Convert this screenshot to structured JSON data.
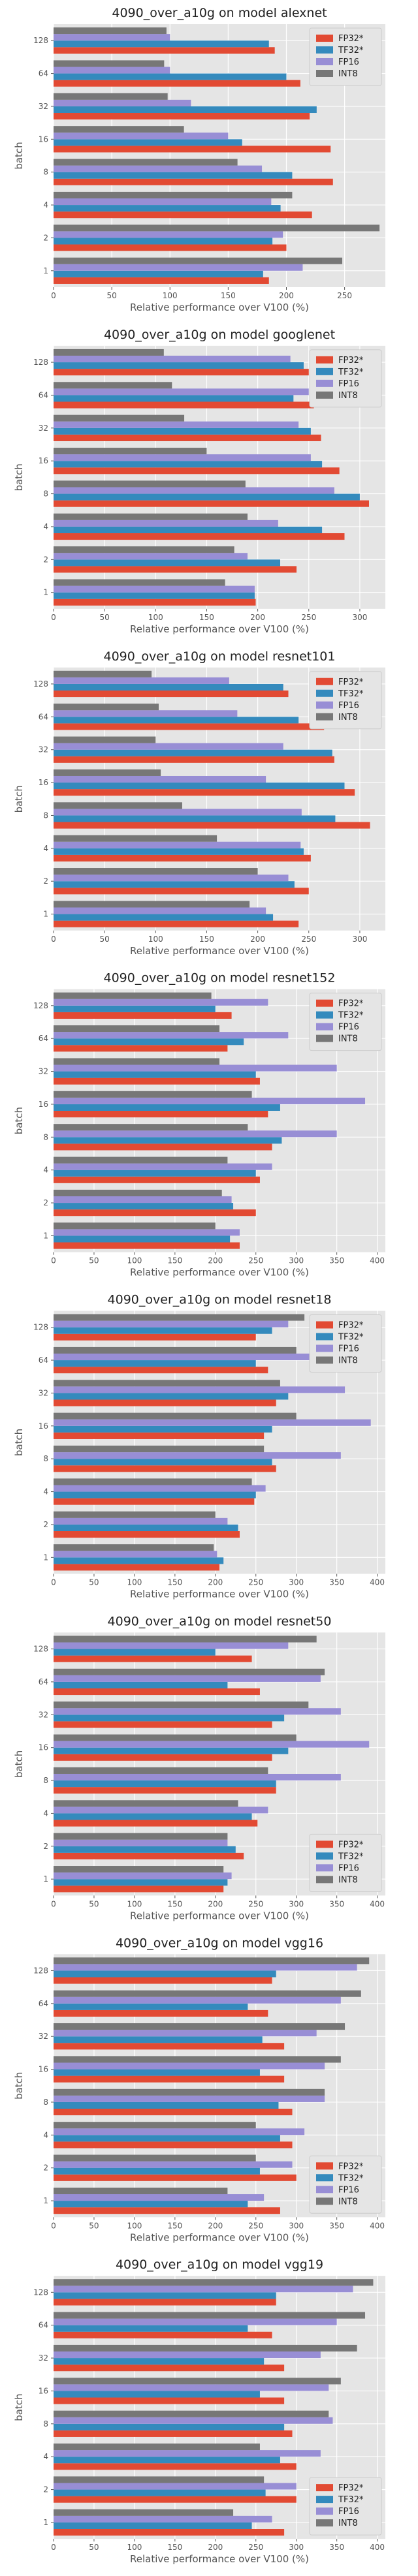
{
  "chart_data": [
    {
      "type": "bar",
      "orientation": "horizontal",
      "title": "4090_over_a10g on model alexnet",
      "xlabel": "Relative performance over V100 (%)",
      "ylabel": "batch",
      "categories": [
        "1",
        "2",
        "4",
        "8",
        "16",
        "32",
        "64",
        "128"
      ],
      "xlim": [
        0,
        285
      ],
      "xticks": [
        0,
        50,
        100,
        150,
        200,
        250
      ],
      "legend": "top-right",
      "grid": true,
      "series": [
        {
          "name": "FP32*",
          "values": [
            185,
            200,
            222,
            240,
            238,
            220,
            212,
            190
          ]
        },
        {
          "name": "TF32*",
          "values": [
            180,
            188,
            195,
            205,
            162,
            226,
            200,
            185
          ]
        },
        {
          "name": "FP16",
          "values": [
            214,
            197,
            187,
            179,
            150,
            118,
            100,
            100
          ]
        },
        {
          "name": "INT8",
          "values": [
            248,
            280,
            205,
            158,
            112,
            98,
            95,
            97
          ]
        }
      ]
    },
    {
      "type": "bar",
      "orientation": "horizontal",
      "title": "4090_over_a10g on model googlenet",
      "xlabel": "Relative performance over V100 (%)",
      "ylabel": "batch",
      "categories": [
        "1",
        "2",
        "4",
        "8",
        "16",
        "32",
        "64",
        "128"
      ],
      "xlim": [
        0,
        325
      ],
      "xticks": [
        0,
        50,
        100,
        150,
        200,
        250,
        300
      ],
      "legend": "top-right",
      "grid": true,
      "series": [
        {
          "name": "FP32*",
          "values": [
            198,
            238,
            285,
            309,
            280,
            262,
            255,
            250
          ]
        },
        {
          "name": "TF32*",
          "values": [
            197,
            222,
            263,
            300,
            263,
            252,
            235,
            245
          ]
        },
        {
          "name": "FP16",
          "values": [
            197,
            190,
            220,
            275,
            252,
            240,
            250,
            232
          ]
        },
        {
          "name": "INT8",
          "values": [
            168,
            177,
            190,
            188,
            150,
            128,
            116,
            108
          ]
        }
      ]
    },
    {
      "type": "bar",
      "orientation": "horizontal",
      "title": "4090_over_a10g on model resnet101",
      "xlabel": "Relative performance over V100 (%)",
      "ylabel": "batch",
      "categories": [
        "1",
        "2",
        "4",
        "8",
        "16",
        "32",
        "64",
        "128"
      ],
      "xlim": [
        0,
        325
      ],
      "xticks": [
        0,
        50,
        100,
        150,
        200,
        250,
        300
      ],
      "legend": "top-right",
      "grid": true,
      "series": [
        {
          "name": "FP32*",
          "values": [
            240,
            250,
            252,
            310,
            295,
            275,
            265,
            230
          ]
        },
        {
          "name": "TF32*",
          "values": [
            215,
            236,
            245,
            276,
            285,
            273,
            240,
            225
          ]
        },
        {
          "name": "FP16",
          "values": [
            208,
            230,
            242,
            243,
            208,
            225,
            180,
            172
          ]
        },
        {
          "name": "INT8",
          "values": [
            192,
            200,
            160,
            126,
            105,
            100,
            103,
            96
          ]
        }
      ]
    },
    {
      "type": "bar",
      "orientation": "horizontal",
      "title": "4090_over_a10g on model resnet152",
      "xlabel": "Relative performance over V100 (%)",
      "ylabel": "batch",
      "categories": [
        "1",
        "2",
        "4",
        "8",
        "16",
        "32",
        "64",
        "128"
      ],
      "xlim": [
        0,
        410
      ],
      "xticks": [
        0,
        50,
        100,
        150,
        200,
        250,
        300,
        350,
        400
      ],
      "legend": "top-right",
      "grid": true,
      "series": [
        {
          "name": "FP32*",
          "values": [
            230,
            250,
            255,
            270,
            265,
            255,
            215,
            220
          ]
        },
        {
          "name": "TF32*",
          "values": [
            218,
            222,
            250,
            282,
            280,
            250,
            235,
            200
          ]
        },
        {
          "name": "FP16",
          "values": [
            230,
            220,
            270,
            350,
            385,
            350,
            290,
            265
          ]
        },
        {
          "name": "INT8",
          "values": [
            200,
            208,
            215,
            240,
            245,
            205,
            205,
            195
          ]
        }
      ]
    },
    {
      "type": "bar",
      "orientation": "horizontal",
      "title": "4090_over_a10g on model resnet18",
      "xlabel": "Relative performance over V100 (%)",
      "ylabel": "batch",
      "categories": [
        "1",
        "2",
        "4",
        "8",
        "16",
        "32",
        "64",
        "128"
      ],
      "xlim": [
        0,
        410
      ],
      "xticks": [
        0,
        50,
        100,
        150,
        200,
        250,
        300,
        350,
        400
      ],
      "legend": "top-right",
      "grid": true,
      "series": [
        {
          "name": "FP32*",
          "values": [
            205,
            230,
            248,
            275,
            260,
            275,
            265,
            250
          ]
        },
        {
          "name": "TF32*",
          "values": [
            210,
            228,
            250,
            270,
            270,
            290,
            250,
            270
          ]
        },
        {
          "name": "FP16",
          "values": [
            202,
            215,
            262,
            355,
            392,
            360,
            320,
            290
          ]
        },
        {
          "name": "INT8",
          "values": [
            198,
            200,
            245,
            260,
            300,
            280,
            300,
            310
          ]
        }
      ]
    },
    {
      "type": "bar",
      "orientation": "horizontal",
      "title": "4090_over_a10g on model resnet50",
      "xlabel": "Relative performance over V100 (%)",
      "ylabel": "batch",
      "categories": [
        "1",
        "2",
        "4",
        "8",
        "16",
        "32",
        "64",
        "128"
      ],
      "xlim": [
        0,
        410
      ],
      "xticks": [
        0,
        50,
        100,
        150,
        200,
        250,
        300,
        350,
        400
      ],
      "legend": "bottom-right",
      "grid": true,
      "series": [
        {
          "name": "FP32*",
          "values": [
            210,
            235,
            252,
            275,
            270,
            270,
            255,
            245
          ]
        },
        {
          "name": "TF32*",
          "values": [
            215,
            225,
            245,
            275,
            290,
            285,
            215,
            200
          ]
        },
        {
          "name": "FP16",
          "values": [
            220,
            215,
            265,
            355,
            390,
            355,
            330,
            290
          ]
        },
        {
          "name": "INT8",
          "values": [
            210,
            215,
            228,
            265,
            300,
            315,
            335,
            325
          ]
        }
      ]
    },
    {
      "type": "bar",
      "orientation": "horizontal",
      "title": "4090_over_a10g on model vgg16",
      "xlabel": "Relative performance over V100 (%)",
      "ylabel": "batch",
      "categories": [
        "1",
        "2",
        "4",
        "8",
        "16",
        "32",
        "64",
        "128"
      ],
      "xlim": [
        0,
        410
      ],
      "xticks": [
        0,
        50,
        100,
        150,
        200,
        250,
        300,
        350,
        400
      ],
      "legend": "bottom-right",
      "grid": true,
      "series": [
        {
          "name": "FP32*",
          "values": [
            280,
            300,
            295,
            295,
            285,
            285,
            265,
            270
          ]
        },
        {
          "name": "TF32*",
          "values": [
            240,
            255,
            280,
            278,
            255,
            258,
            240,
            275
          ]
        },
        {
          "name": "FP16",
          "values": [
            260,
            295,
            310,
            335,
            335,
            325,
            355,
            375
          ]
        },
        {
          "name": "INT8",
          "values": [
            215,
            250,
            250,
            335,
            355,
            360,
            380,
            390
          ]
        }
      ]
    },
    {
      "type": "bar",
      "orientation": "horizontal",
      "title": "4090_over_a10g on model vgg19",
      "xlabel": "Relative performance over V100 (%)",
      "ylabel": "batch",
      "categories": [
        "1",
        "2",
        "4",
        "8",
        "16",
        "32",
        "64",
        "128"
      ],
      "xlim": [
        0,
        410
      ],
      "xticks": [
        0,
        50,
        100,
        150,
        200,
        250,
        300,
        350,
        400
      ],
      "legend": "bottom-right",
      "grid": true,
      "series": [
        {
          "name": "FP32*",
          "values": [
            285,
            300,
            300,
            295,
            285,
            285,
            270,
            275
          ]
        },
        {
          "name": "TF32*",
          "values": [
            245,
            262,
            280,
            285,
            255,
            260,
            240,
            275
          ]
        },
        {
          "name": "FP16",
          "values": [
            270,
            300,
            330,
            345,
            340,
            330,
            350,
            370
          ]
        },
        {
          "name": "INT8",
          "values": [
            222,
            260,
            255,
            340,
            355,
            375,
            385,
            395
          ]
        }
      ]
    }
  ],
  "colors": {
    "FP32*": "#E24A33",
    "TF32*": "#348ABD",
    "FP16": "#988ED5",
    "INT8": "#777777",
    "plot_background": "#E5E5E5",
    "grid": "#FFFFFF"
  }
}
